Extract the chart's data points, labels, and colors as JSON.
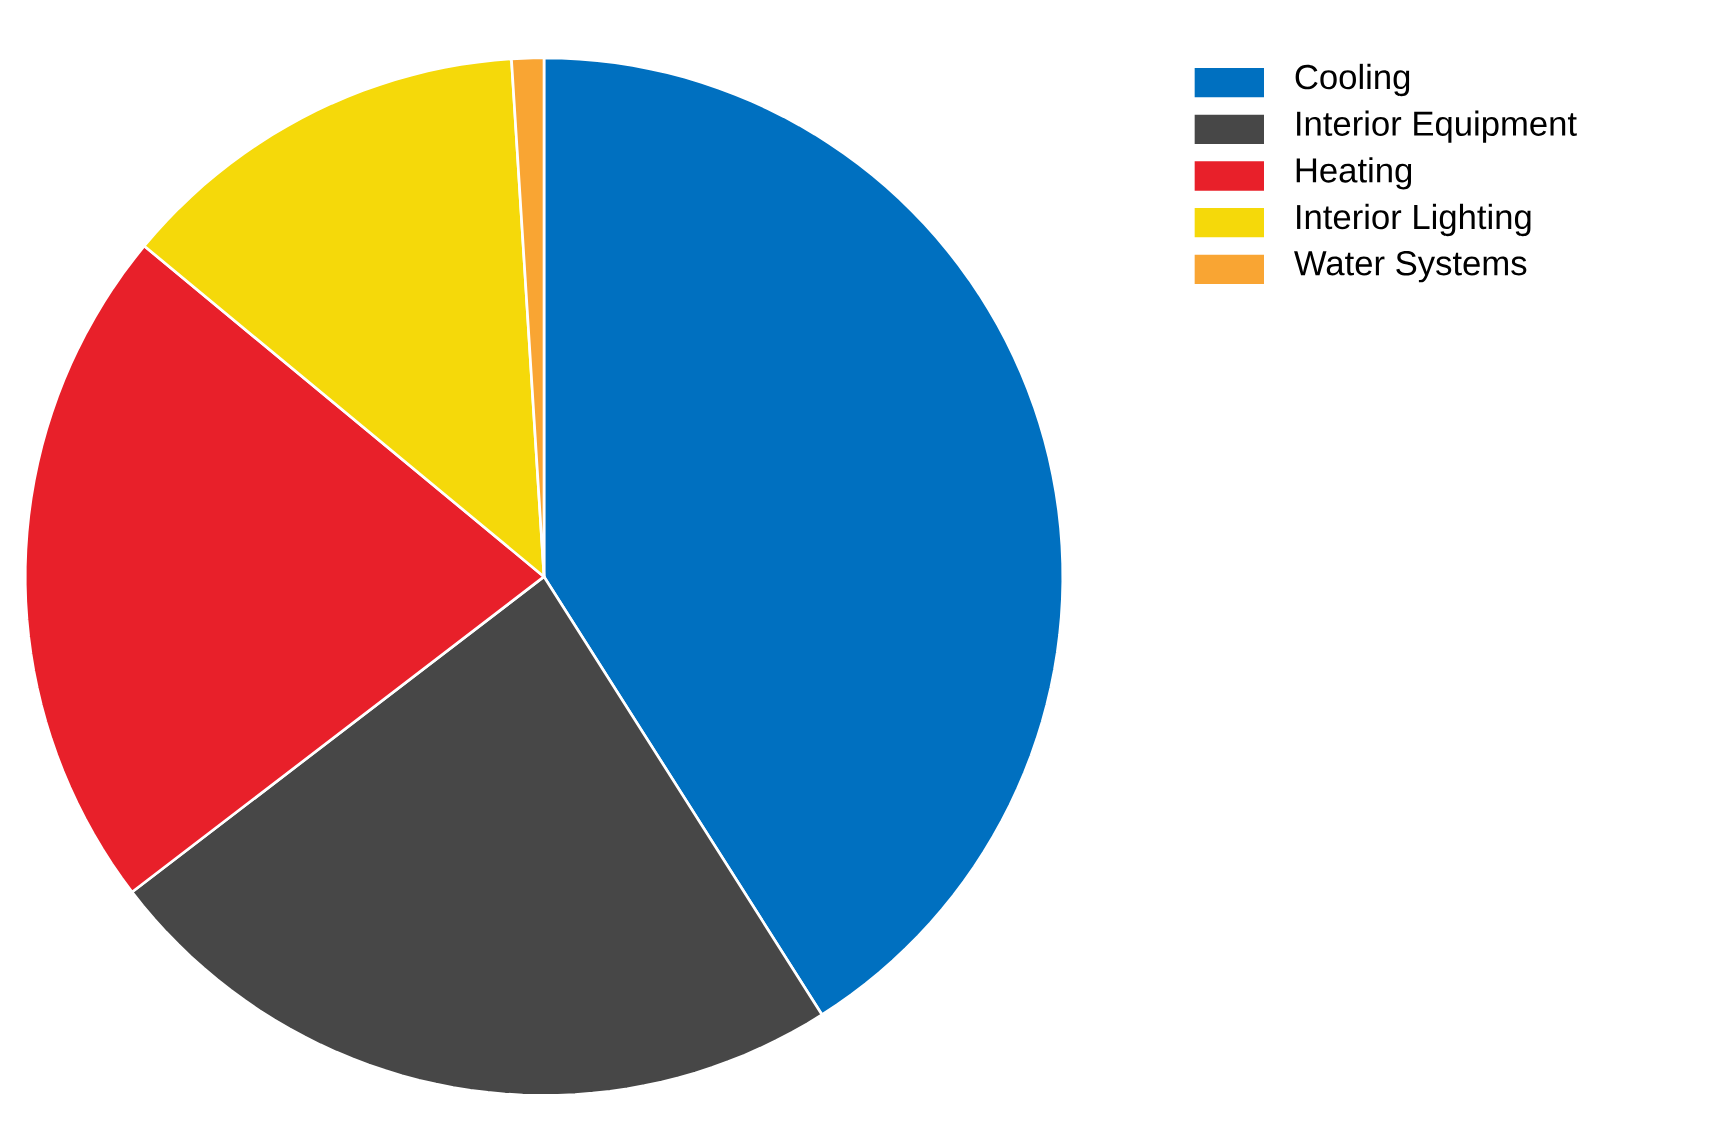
{
  "chart_data": {
    "type": "pie",
    "categories": [
      "Cooling",
      "Interior Equipment",
      "Heating",
      "Interior Lighting",
      "Water Systems"
    ],
    "values": [
      41,
      23.6,
      21.4,
      13,
      1
    ],
    "colors": [
      "#0070c0",
      "#474747",
      "#e8202a",
      "#f5d90a",
      "#f9a533"
    ],
    "legend": "top right"
  }
}
